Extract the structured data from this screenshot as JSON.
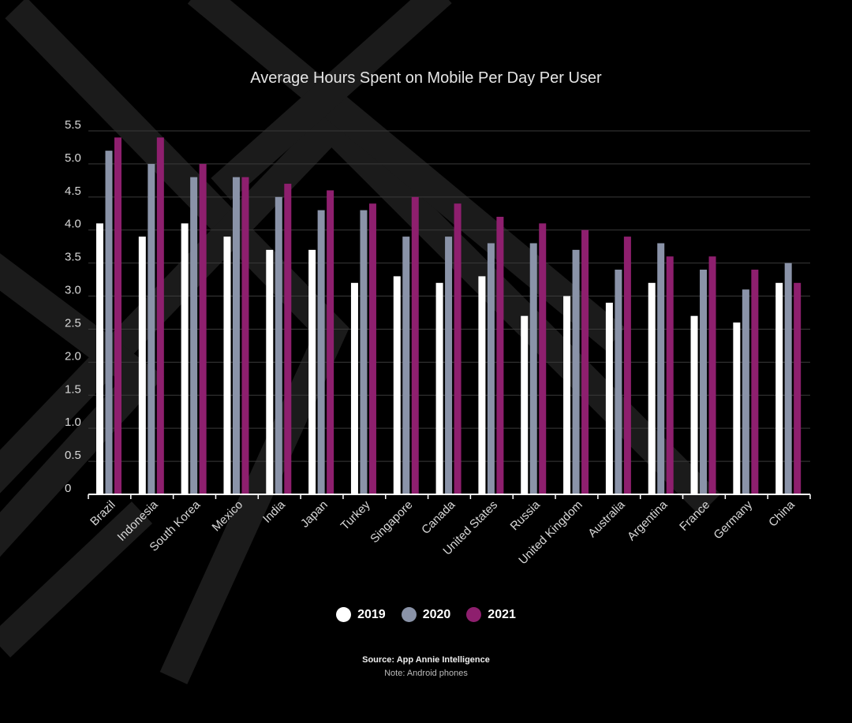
{
  "chart_data": {
    "type": "bar",
    "title": "Average Hours Spent on Mobile Per Day Per User",
    "xlabel": "",
    "ylabel": "",
    "ylim": [
      0,
      5.5
    ],
    "yticks": [
      "0",
      "0.5",
      "1.0",
      "1.5",
      "2.0",
      "2.5",
      "3.0",
      "3.5",
      "4.0",
      "4.5",
      "5.0",
      "5.5"
    ],
    "grid": true,
    "legend_position": "bottom",
    "categories": [
      "Brazil",
      "Indonesia",
      "South Korea",
      "Mexico",
      "India",
      "Japan",
      "Turkey",
      "Singapore",
      "Canada",
      "United States",
      "Russia",
      "United Kingdom",
      "Australia",
      "Argentina",
      "France",
      "Germany",
      "China"
    ],
    "series": [
      {
        "name": "2019",
        "color": "#ffffff",
        "values": [
          4.1,
          3.9,
          4.1,
          3.9,
          3.7,
          3.7,
          3.2,
          3.3,
          3.2,
          3.3,
          2.7,
          3.0,
          2.9,
          3.2,
          2.7,
          2.6,
          3.2
        ]
      },
      {
        "name": "2020",
        "color": "#8a93a8",
        "values": [
          5.2,
          5.0,
          4.8,
          4.8,
          4.5,
          4.3,
          4.3,
          3.9,
          3.9,
          3.8,
          3.8,
          3.7,
          3.4,
          3.8,
          3.4,
          3.1,
          3.5
        ]
      },
      {
        "name": "2021",
        "color": "#8e1f6e",
        "values": [
          5.4,
          5.4,
          5.0,
          4.8,
          4.7,
          4.6,
          4.4,
          4.5,
          4.4,
          4.2,
          4.1,
          4.0,
          3.9,
          3.6,
          3.6,
          3.4,
          3.2
        ]
      }
    ]
  },
  "source": "Source: App Annie Intelligence",
  "note": "Note: Android phones"
}
